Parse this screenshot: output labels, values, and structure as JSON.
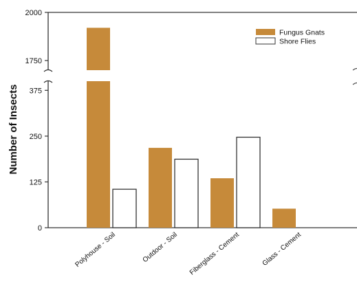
{
  "chart_data": {
    "type": "bar",
    "title": "",
    "xlabel": "",
    "ylabel": "Number of Insects",
    "categories": [
      "Polyhouse - Soil",
      "Outdoor - Soil",
      "Fiberglass - Cement",
      "Glass - Cement"
    ],
    "series": [
      {
        "name": "Fungus Gnats",
        "values": [
          1920,
          218,
          135,
          52
        ],
        "color": "#c68a3a",
        "style": "filled"
      },
      {
        "name": "Shore Flies",
        "values": [
          105,
          187,
          247,
          0
        ],
        "color": "#ffffff",
        "style": "outlined"
      }
    ],
    "y_axis": {
      "broken": true,
      "lower_range": [
        0,
        400
      ],
      "upper_range": [
        1700,
        2000
      ],
      "ticks": [
        0,
        125,
        250,
        375,
        1750,
        2000
      ]
    },
    "legend_position": "top-right",
    "grid": false,
    "bar_outline_color": "#333333"
  }
}
